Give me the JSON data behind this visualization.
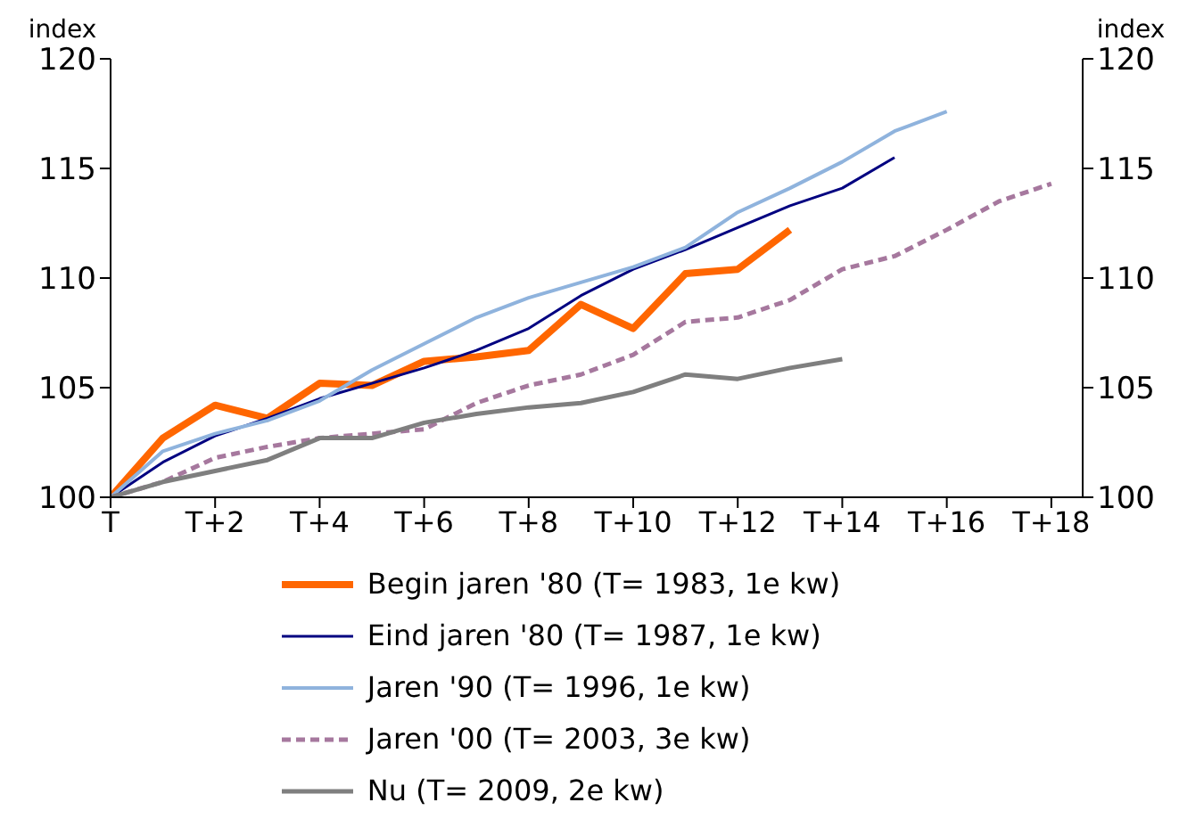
{
  "chart_data": {
    "type": "line",
    "ylabel": "index",
    "y2label": "index",
    "categories": [
      "T",
      null,
      "T+2",
      null,
      "T+4",
      null,
      "T+6",
      null,
      "T+8",
      null,
      "T+10",
      null,
      "T+12",
      null,
      "T+14",
      null,
      "T+16",
      null,
      "T+18"
    ],
    "ylim": [
      100,
      120
    ],
    "yticks": [
      100,
      105,
      110,
      115,
      120
    ],
    "y2lim": [
      100,
      120
    ],
    "y2ticks": [
      100,
      105,
      110,
      115,
      120
    ],
    "grid": false,
    "legend": "bottom",
    "marker": "none",
    "series": [
      {
        "name": "Begin jaren '80 (T= 1983, 1e kw)",
        "color": "#ff6600",
        "line_style": "solid",
        "values": [
          100,
          102.7,
          104.2,
          103.6,
          105.2,
          105.1,
          106.2,
          106.4,
          106.7,
          108.8,
          107.7,
          110.2,
          110.4,
          112.2,
          null,
          null,
          null,
          null,
          null
        ]
      },
      {
        "name": "Eind jaren '80 (T= 1987, 1e kw)",
        "color": "#000080",
        "line_style": "solid",
        "values": [
          100,
          101.6,
          102.8,
          103.6,
          104.5,
          105.2,
          105.9,
          106.7,
          107.7,
          109.2,
          110.4,
          111.3,
          112.3,
          113.3,
          114.1,
          115.5,
          null,
          null,
          null
        ]
      },
      {
        "name": "Jaren '90 (T= 1996, 1e kw)",
        "color": "#8fb3dd",
        "line_style": "solid",
        "values": [
          100,
          102.1,
          102.9,
          103.5,
          104.4,
          105.8,
          107.0,
          108.2,
          109.1,
          109.8,
          110.5,
          111.4,
          113.0,
          114.1,
          115.3,
          116.7,
          117.6,
          null,
          null
        ]
      },
      {
        "name": "Jaren '00 (T= 2003, 3e kw)",
        "color": "#a6789e",
        "line_style": "dashed",
        "values": [
          100,
          100.7,
          101.8,
          102.3,
          102.7,
          102.9,
          103.1,
          104.3,
          105.1,
          105.6,
          106.5,
          108.0,
          108.2,
          109.0,
          110.4,
          111.0,
          112.2,
          113.5,
          114.3
        ]
      },
      {
        "name": "Nu (T= 2009, 2e kw)",
        "color": "#7f7f7f",
        "line_style": "solid",
        "values": [
          100,
          100.7,
          101.2,
          101.7,
          102.7,
          102.7,
          103.4,
          103.8,
          104.1,
          104.3,
          104.8,
          105.6,
          105.4,
          105.9,
          106.3,
          null,
          null,
          null,
          null
        ]
      }
    ]
  }
}
